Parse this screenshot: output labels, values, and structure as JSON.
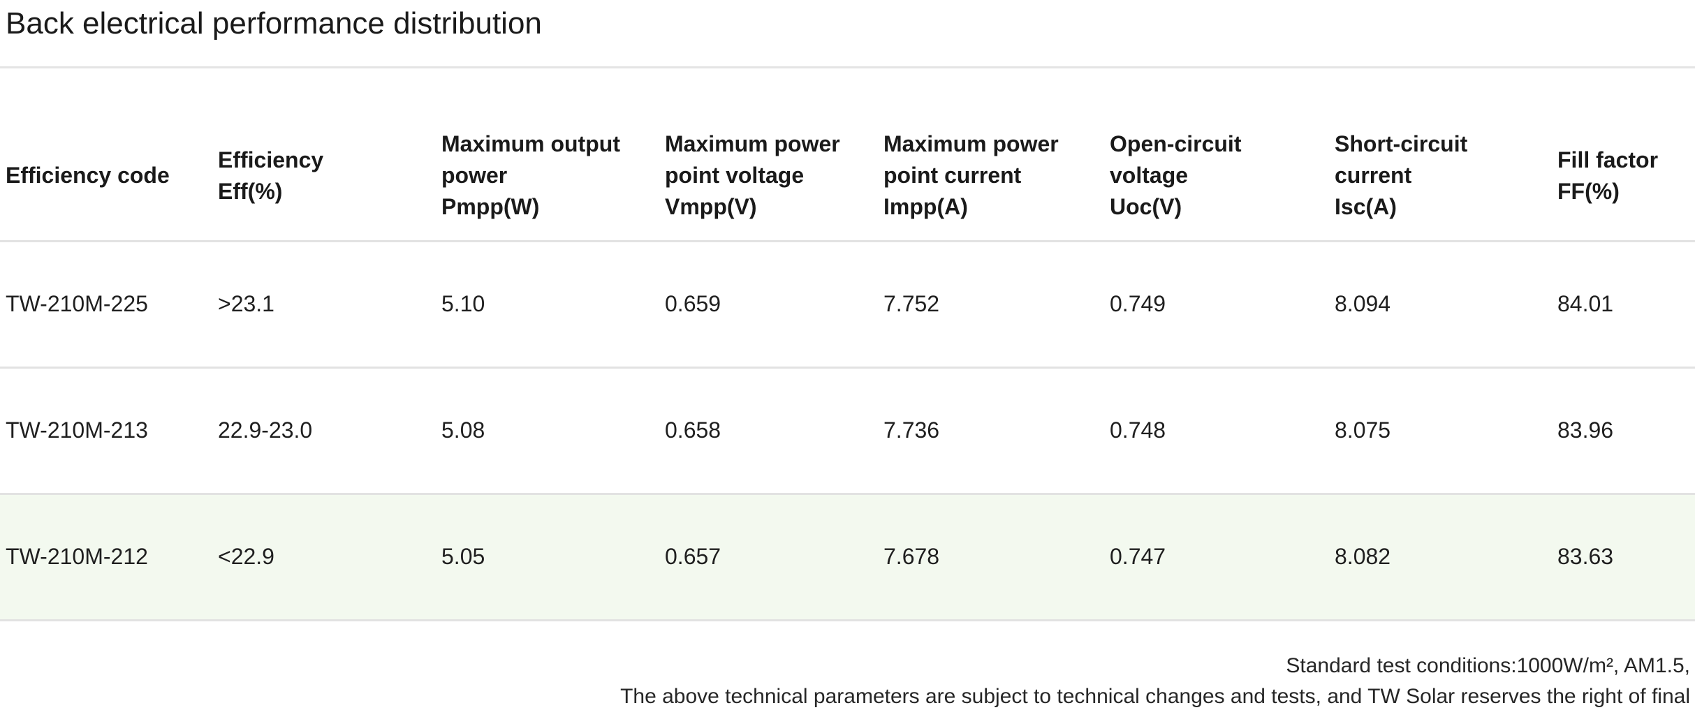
{
  "section": {
    "title": "Back electrical performance distribution"
  },
  "colors": {
    "highlight_row_bg": "#f3f9ef",
    "divider": "#e2e2e2"
  },
  "table": {
    "columns": [
      {
        "label": "Efficiency code",
        "lines": [
          "Efficiency code"
        ]
      },
      {
        "label": "Efficiency Eff(%)",
        "lines": [
          "Efficiency",
          "Eff(%)"
        ]
      },
      {
        "label": "Maximum output power Pmpp(W)",
        "lines": [
          "Maximum output",
          "power",
          "Pmpp(W)"
        ]
      },
      {
        "label": "Maximum power point voltage Vmpp(V)",
        "lines": [
          "Maximum power",
          "point voltage",
          "Vmpp(V)"
        ]
      },
      {
        "label": "Maximum power point current Impp(A)",
        "lines": [
          "Maximum power",
          "point current",
          "Impp(A)"
        ]
      },
      {
        "label": "Open-circuit voltage Uoc(V)",
        "lines": [
          "Open-circuit",
          "voltage",
          "Uoc(V)"
        ]
      },
      {
        "label": "Short-circuit current Isc(A)",
        "lines": [
          "Short-circuit",
          "current",
          "Isc(A)"
        ]
      },
      {
        "label": "Fill factor FF(%)",
        "lines": [
          "Fill factor",
          "FF(%)"
        ]
      }
    ],
    "rows": [
      {
        "highlight": false,
        "cells": [
          "TW-210M-225",
          ">23.1",
          "5.10",
          "0.659",
          "7.752",
          "0.749",
          "8.094",
          "84.01"
        ]
      },
      {
        "highlight": false,
        "cells": [
          "TW-210M-213",
          "22.9-23.0",
          "5.08",
          "0.658",
          "7.736",
          "0.748",
          "8.075",
          "83.96"
        ]
      },
      {
        "highlight": true,
        "cells": [
          "TW-210M-212",
          "<22.9",
          "5.05",
          "0.657",
          "7.678",
          "0.747",
          "8.082",
          "83.63"
        ]
      }
    ]
  },
  "footnote": {
    "line1": "Standard test conditions:1000W/m², AM1.5,",
    "line2": "The above technical parameters are subject to technical changes and tests, and TW Solar reserves the right of final"
  }
}
